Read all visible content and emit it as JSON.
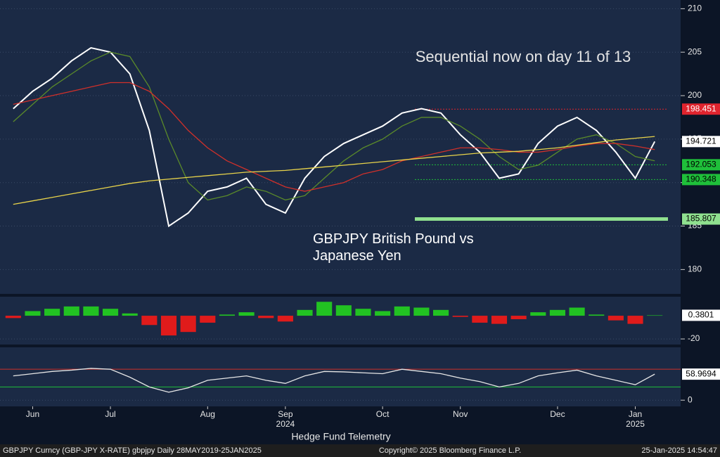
{
  "chart_data": [
    {
      "type": "line",
      "annotations": [
        "Sequential now on day 11 of 13",
        "GBPJPY British Pound vs Japanese Yen"
      ],
      "categories": [
        null,
        "Jun",
        null,
        null,
        null,
        "Jul",
        null,
        null,
        null,
        null,
        "Aug",
        null,
        null,
        null,
        "Sep",
        null,
        null,
        null,
        null,
        "Oct",
        null,
        null,
        null,
        "Nov",
        null,
        null,
        null,
        null,
        "Dec",
        null,
        null,
        null,
        "Jan",
        null
      ],
      "categories2": [
        null,
        null,
        null,
        null,
        null,
        null,
        null,
        null,
        null,
        null,
        null,
        null,
        null,
        null,
        "2024",
        null,
        null,
        null,
        null,
        null,
        null,
        null,
        null,
        null,
        null,
        null,
        null,
        null,
        null,
        null,
        null,
        null,
        "2025",
        null
      ],
      "series": [
        {
          "color": "#ffffff",
          "values": [
            198.5,
            200.5,
            202,
            204,
            205.5,
            205,
            202.5,
            196,
            185,
            186.5,
            189,
            189.5,
            190.5,
            187.5,
            186.5,
            190.5,
            193,
            194.5,
            195.5,
            196.5,
            198,
            198.5,
            198,
            195.5,
            193.5,
            190.5,
            191,
            194.5,
            196.5,
            197.5,
            196,
            193.5,
            190.5,
            194.721
          ]
        },
        {
          "color": "#5a8a2a",
          "values": [
            197,
            199,
            201,
            202.5,
            204,
            205,
            204.5,
            201,
            195,
            190,
            188,
            188.5,
            189.5,
            189,
            188,
            188.5,
            190.5,
            192.5,
            194,
            195,
            196.5,
            197.5,
            197.5,
            196.5,
            195,
            193,
            191.5,
            192,
            193.5,
            195,
            195.5,
            194.5,
            193,
            192.5
          ]
        },
        {
          "color": "#d0302a",
          "values": [
            199,
            199.5,
            200,
            200.5,
            201,
            201.5,
            201.5,
            200.5,
            198.5,
            196,
            194,
            192.5,
            191.5,
            190.5,
            189.5,
            189,
            189.5,
            190,
            191,
            191.5,
            192.5,
            193,
            193.5,
            194,
            194,
            193.8,
            193.5,
            193.5,
            193.8,
            194.2,
            194.5,
            194.5,
            194.2,
            193.8
          ]
        },
        {
          "color": "#e8d34a",
          "values": [
            187.5,
            187.9,
            188.3,
            188.7,
            189.1,
            189.5,
            189.9,
            190.2,
            190.4,
            190.6,
            190.8,
            191,
            191.2,
            191.3,
            191.4,
            191.6,
            191.8,
            192,
            192.2,
            192.4,
            192.6,
            192.8,
            193,
            193.2,
            193.4,
            193.5,
            193.6,
            193.8,
            194,
            194.3,
            194.6,
            194.9,
            195.1,
            195.3
          ]
        }
      ],
      "levels": [
        {
          "value": 198.451,
          "color": "#e0242e"
        },
        {
          "value": 192.053,
          "color": "#1fbf3a"
        },
        {
          "value": 190.348,
          "color": "#1fbf3a"
        },
        {
          "value": 185.807,
          "color": "#8fe08f"
        }
      ],
      "ylim": [
        177.2,
        211
      ],
      "yticks": [
        180,
        185,
        190,
        195,
        200,
        205,
        210
      ]
    },
    {
      "type": "bar",
      "colors": {
        "positive": "#22c222",
        "negative": "#e01b1b"
      },
      "values": [
        -2,
        4,
        6,
        8,
        8,
        6,
        2,
        -8,
        -17,
        -14,
        -6,
        1,
        3,
        -2,
        -5,
        5,
        12,
        9,
        6,
        4,
        8,
        7,
        5,
        -1,
        -6,
        -7,
        -3,
        3,
        5,
        7,
        1,
        -4,
        -7,
        0.3801
      ],
      "ylim": [
        -24.8,
        16.4
      ],
      "yticks": [
        -20
      ]
    },
    {
      "type": "line",
      "series": [
        {
          "color": "#e6e6e6",
          "values": [
            55,
            60,
            65,
            68,
            72,
            70,
            52,
            30,
            18,
            28,
            45,
            50,
            55,
            45,
            38,
            55,
            65,
            64,
            62,
            60,
            70,
            65,
            60,
            50,
            42,
            30,
            38,
            55,
            62,
            68,
            55,
            45,
            35,
            58.9694
          ]
        }
      ],
      "levels": [
        {
          "value": 70,
          "color": "#d0302a"
        },
        {
          "value": 30,
          "color": "#1fbf3a"
        }
      ],
      "ylim": [
        -14,
        119.6
      ],
      "yticks": [
        0
      ]
    }
  ],
  "caption": "Hedge Fund Telemetry",
  "footer": [
    "GBPJPY Curncy (GBP-JPY X-RATE) gbpjpy  Daily 28MAY2019-25JAN2025",
    "Copyright© 2025 Bloomberg Finance L.P.",
    "25-Jan-2025 14:54:47"
  ]
}
